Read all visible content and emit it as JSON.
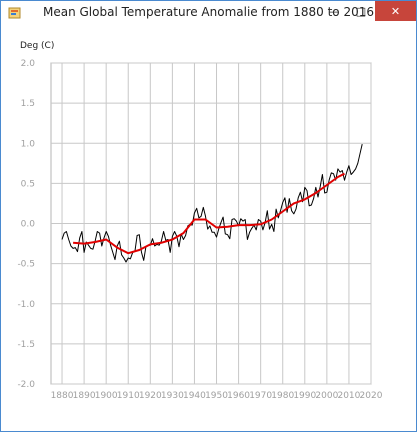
{
  "window": {
    "title": "Mean Global Temperature Anomalie from 1880 to 2016",
    "minimize_glyph": "—",
    "maximize_glyph": "□",
    "close_glyph": "✕",
    "icon": "java-app-icon"
  },
  "chart_data": {
    "type": "line",
    "title": "Mean Global Temperature Anomalie from 1880 to 2016",
    "ylabel": "Deg (C)",
    "xlabel": "",
    "xlim": [
      1875,
      2020
    ],
    "ylim": [
      -2.0,
      2.0
    ],
    "grid": true,
    "legend": "none",
    "x_ticks": [
      1880,
      1890,
      1900,
      1910,
      1920,
      1930,
      1940,
      1950,
      1960,
      1970,
      1980,
      1990,
      2000,
      2010,
      2020
    ],
    "y_ticks": [
      "2.0",
      "1.5",
      "1.0",
      "0.5",
      "0.0",
      "-0.5",
      "-1.0",
      "-1.5",
      "-2.0"
    ],
    "series": [
      {
        "color": "#000000",
        "x": [
          1880,
          1881,
          1882,
          1883,
          1884,
          1885,
          1886,
          1887,
          1888,
          1889,
          1890,
          1891,
          1892,
          1893,
          1894,
          1895,
          1896,
          1897,
          1898,
          1899,
          1900,
          1901,
          1902,
          1903,
          1904,
          1905,
          1906,
          1907,
          1908,
          1909,
          1910,
          1911,
          1912,
          1913,
          1914,
          1915,
          1916,
          1917,
          1918,
          1919,
          1920,
          1921,
          1922,
          1923,
          1924,
          1925,
          1926,
          1927,
          1928,
          1929,
          1930,
          1931,
          1932,
          1933,
          1934,
          1935,
          1936,
          1937,
          1938,
          1939,
          1940,
          1941,
          1942,
          1943,
          1944,
          1945,
          1946,
          1947,
          1948,
          1949,
          1950,
          1951,
          1952,
          1953,
          1954,
          1955,
          1956,
          1957,
          1958,
          1959,
          1960,
          1961,
          1962,
          1963,
          1964,
          1965,
          1966,
          1967,
          1968,
          1969,
          1970,
          1971,
          1972,
          1973,
          1974,
          1975,
          1976,
          1977,
          1978,
          1979,
          1980,
          1981,
          1982,
          1983,
          1984,
          1985,
          1986,
          1987,
          1988,
          1989,
          1990,
          1991,
          1992,
          1993,
          1994,
          1995,
          1996,
          1997,
          1998,
          1999,
          2000,
          2001,
          2002,
          2003,
          2004,
          2005,
          2006,
          2007,
          2008,
          2009,
          2010,
          2011,
          2012,
          2013,
          2014,
          2015,
          2016
        ],
        "y": [
          -0.2,
          -0.12,
          -0.1,
          -0.2,
          -0.28,
          -0.31,
          -0.3,
          -0.35,
          -0.18,
          -0.1,
          -0.36,
          -0.23,
          -0.27,
          -0.31,
          -0.32,
          -0.22,
          -0.1,
          -0.12,
          -0.28,
          -0.18,
          -0.1,
          -0.16,
          -0.27,
          -0.36,
          -0.45,
          -0.28,
          -0.22,
          -0.39,
          -0.43,
          -0.48,
          -0.43,
          -0.44,
          -0.36,
          -0.35,
          -0.15,
          -0.14,
          -0.36,
          -0.46,
          -0.29,
          -0.27,
          -0.27,
          -0.19,
          -0.28,
          -0.26,
          -0.27,
          -0.22,
          -0.1,
          -0.21,
          -0.2,
          -0.36,
          -0.16,
          -0.1,
          -0.16,
          -0.29,
          -0.13,
          -0.2,
          -0.15,
          -0.03,
          -0.01,
          -0.02,
          0.13,
          0.19,
          0.07,
          0.09,
          0.2,
          0.09,
          -0.07,
          -0.03,
          -0.11,
          -0.11,
          -0.17,
          -0.07,
          0.01,
          0.08,
          -0.13,
          -0.14,
          -0.19,
          0.05,
          0.06,
          0.03,
          -0.03,
          0.06,
          0.03,
          0.05,
          -0.2,
          -0.11,
          -0.06,
          -0.02,
          -0.08,
          0.05,
          0.03,
          -0.08,
          0.01,
          0.16,
          -0.07,
          -0.01,
          -0.1,
          0.18,
          0.07,
          0.16,
          0.26,
          0.32,
          0.14,
          0.31,
          0.16,
          0.12,
          0.18,
          0.32,
          0.39,
          0.27,
          0.45,
          0.41,
          0.22,
          0.23,
          0.31,
          0.45,
          0.33,
          0.46,
          0.61,
          0.38,
          0.39,
          0.54,
          0.63,
          0.62,
          0.54,
          0.68,
          0.64,
          0.66,
          0.54,
          0.64,
          0.72,
          0.61,
          0.64,
          0.68,
          0.75,
          0.87,
          0.99
        ]
      },
      {
        "color": "#e00000",
        "x": [
          1885,
          1890,
          1895,
          1900,
          1905,
          1910,
          1915,
          1920,
          1925,
          1930,
          1935,
          1940,
          1945,
          1950,
          1955,
          1960,
          1965,
          1970,
          1975,
          1980,
          1985,
          1990,
          1995,
          2000,
          2005,
          2008
        ],
        "y": [
          -0.24,
          -0.25,
          -0.23,
          -0.2,
          -0.3,
          -0.37,
          -0.33,
          -0.26,
          -0.24,
          -0.2,
          -0.12,
          0.05,
          0.05,
          -0.05,
          -0.04,
          -0.02,
          -0.02,
          -0.01,
          0.05,
          0.15,
          0.25,
          0.3,
          0.38,
          0.48,
          0.58,
          0.62
        ]
      }
    ]
  }
}
